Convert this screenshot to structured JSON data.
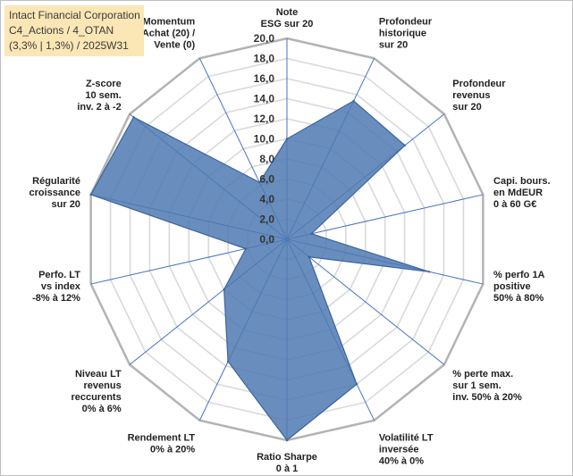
{
  "header": {
    "line1": "Intact Financial Corporation",
    "line2": "C4_Actions / 4_OTAN",
    "line3": "(3,3% | 1,3%) / 2025W31"
  },
  "chart_data": {
    "type": "radar",
    "title": "",
    "categories": [
      [
        "Note",
        "ESG sur 20"
      ],
      [
        "Profondeur",
        "historique",
        "sur 20"
      ],
      [
        "Profondeur",
        "revenus",
        "sur 20"
      ],
      [
        "Capi. bours.",
        "en MdEUR",
        "0 à 60 G€"
      ],
      [
        "% perfo 1A",
        "positive",
        "50% à 80%"
      ],
      [
        "% perte max.",
        "sur 1 sem.",
        "inv. 50% à 20%"
      ],
      [
        "Volatilité LT",
        "inversée",
        "40% à 0%"
      ],
      [
        "Ratio Sharpe",
        "0 à 1"
      ],
      [
        "Rendement LT",
        "0% à 20%"
      ],
      [
        "Niveau LT",
        "revenus",
        "reccurents",
        "0% à 6%"
      ],
      [
        "Perfo. LT",
        "vs index",
        "-8% à 12%"
      ],
      [
        "Régularité",
        "croissance",
        "sur 20"
      ],
      [
        "Z-score",
        "10 sem.",
        "inv. 2 à -2"
      ],
      [
        "Momentum",
        "Achat (20) /",
        "Vente (0)"
      ]
    ],
    "values": [
      10,
      15.3,
      15,
      2.5,
      14.5,
      2.8,
      16,
      20,
      13.5,
      8,
      4.2,
      20,
      19.5,
      6.3
    ],
    "ylim": [
      0,
      20
    ],
    "tick_step": 2,
    "tick_labels": [
      "0,0",
      "2,0",
      "4,0",
      "6,0",
      "8,0",
      "10,0",
      "12,0",
      "14,0",
      "16,0",
      "18,0",
      "20,0"
    ],
    "grid": true,
    "legend": "none",
    "colors": {
      "fill": "#4f7ab2",
      "stroke": "#3b64a0",
      "spokes": "#4472c4",
      "grid_minor": "#d9d9d9",
      "grid_major": "#b3b3b3"
    }
  }
}
